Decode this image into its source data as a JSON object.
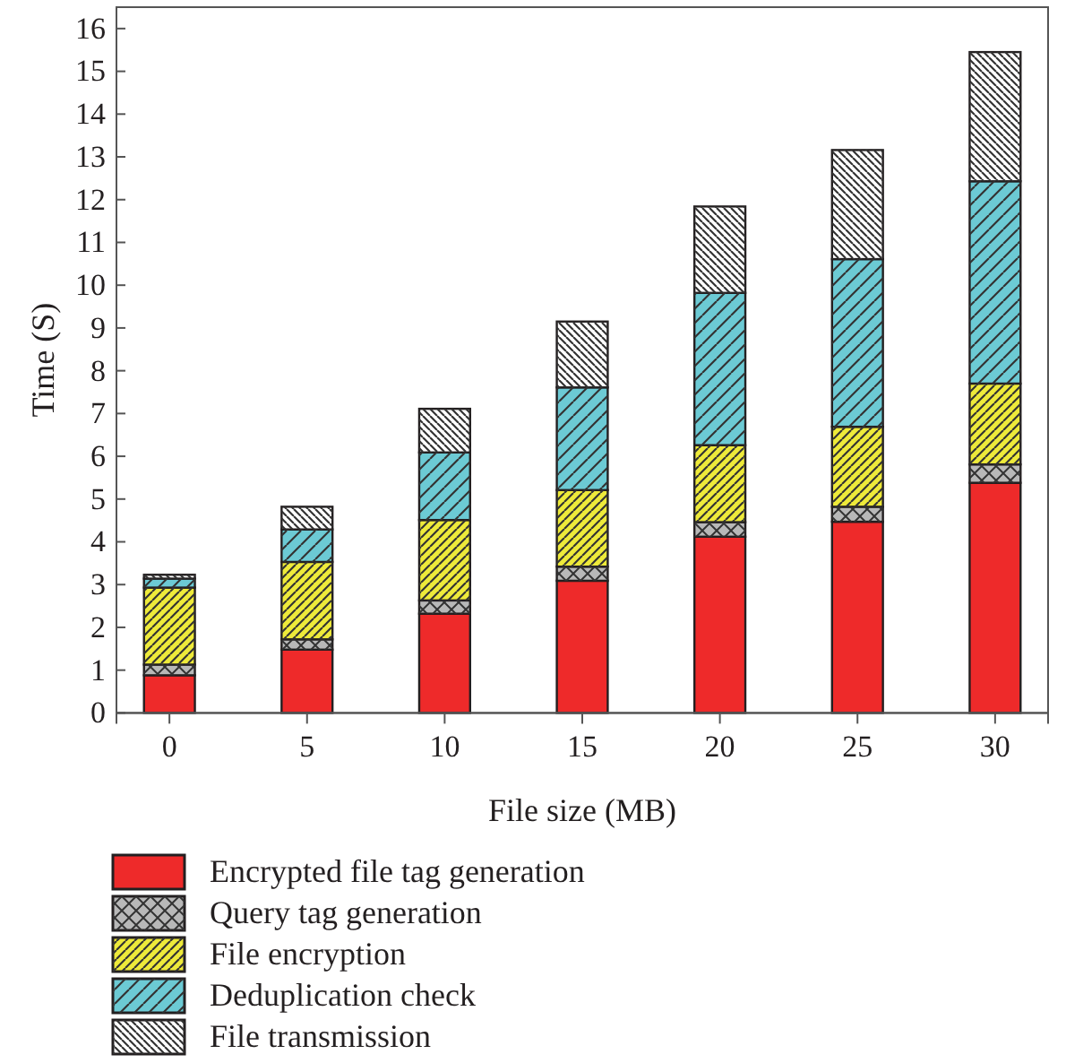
{
  "chart_data": {
    "type": "bar",
    "stacked": true,
    "xlabel": "File size (MB)",
    "ylabel": "Time (S)",
    "categories": [
      "0",
      "5",
      "10",
      "15",
      "20",
      "25",
      "30"
    ],
    "ylim": [
      0,
      16.5
    ],
    "yticks": [
      0,
      1,
      2,
      3,
      4,
      5,
      6,
      7,
      8,
      9,
      10,
      11,
      12,
      13,
      14,
      15,
      16
    ],
    "grid": false,
    "legend": "bottom",
    "series": [
      {
        "name": "Encrypted file tag generation",
        "color": "#ee2a2a",
        "values": [
          0.88,
          1.48,
          2.32,
          3.09,
          4.12,
          4.47,
          5.38
        ]
      },
      {
        "name": "Query tag generation",
        "color": "#b8b8b8",
        "values": [
          0.25,
          0.24,
          0.31,
          0.33,
          0.34,
          0.35,
          0.43
        ]
      },
      {
        "name": "File encryption",
        "color": "#eeea3a",
        "values": [
          1.8,
          1.81,
          1.88,
          1.79,
          1.8,
          1.87,
          1.89
        ]
      },
      {
        "name": "Deduplication check",
        "color": "#6ccad4",
        "values": [
          0.21,
          0.76,
          1.58,
          2.4,
          3.56,
          3.92,
          4.73
        ]
      },
      {
        "name": "File transmission",
        "color": "#ffffff",
        "values": [
          0.09,
          0.53,
          1.02,
          1.54,
          2.02,
          2.55,
          3.02
        ]
      }
    ]
  }
}
